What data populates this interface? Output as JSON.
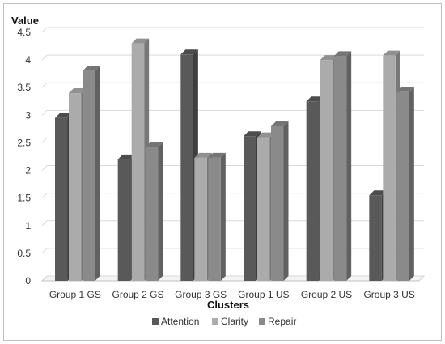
{
  "chart_data": {
    "type": "bar",
    "title": "",
    "ylabel": "Value",
    "xlabel": "Clusters",
    "ylim": [
      0,
      4.5
    ],
    "yticks": [
      "0",
      "0.5",
      "1",
      "1.5",
      "2",
      "2.5",
      "3",
      "3.5",
      "4",
      "4.5"
    ],
    "categories": [
      "Group 1 GS",
      "Group 2 GS",
      "Group 3 GS",
      "Group 1 US",
      "Group 2 US",
      "Group 3 US"
    ],
    "series": [
      {
        "name": "Attention",
        "values": [
          2.95,
          2.2,
          4.1,
          2.62,
          3.25,
          1.55
        ]
      },
      {
        "name": "Clarity",
        "values": [
          3.4,
          4.3,
          2.23,
          2.6,
          4.0,
          4.08
        ]
      },
      {
        "name": "Repair",
        "values": [
          3.8,
          2.42,
          2.23,
          2.8,
          4.07,
          3.42
        ]
      }
    ],
    "colors": [
      "#595959",
      "#ababab",
      "#8a8a8a"
    ],
    "grid": true,
    "style": "3d-clustered-column",
    "legend_position": "bottom"
  }
}
